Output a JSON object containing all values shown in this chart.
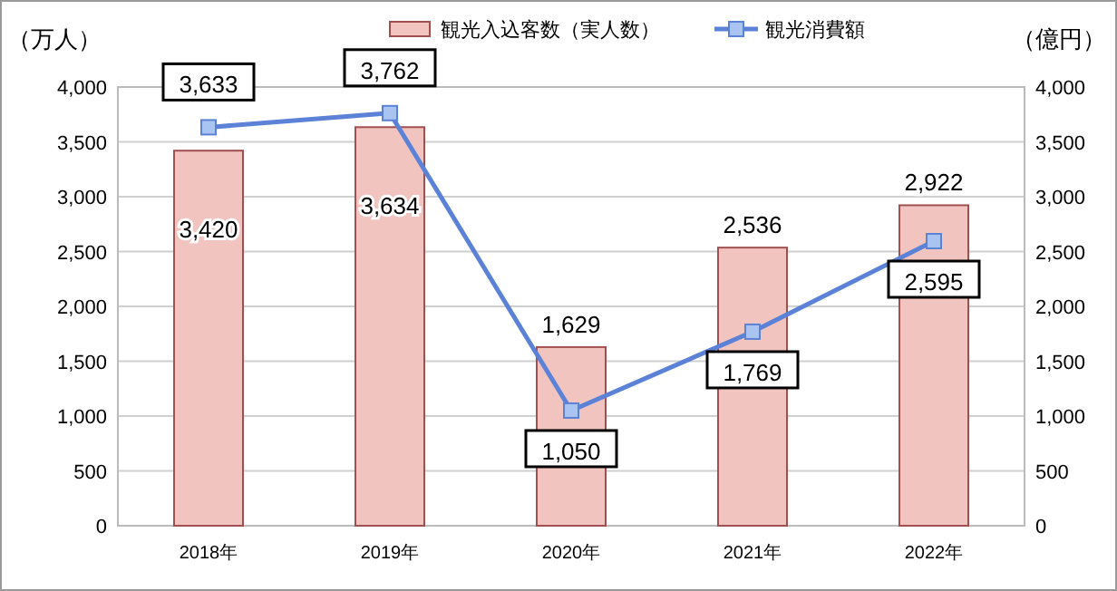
{
  "chart_data": {
    "type": "bar",
    "ylabel": "（万人）",
    "y2label": "（億円）",
    "categories": [
      "2018年",
      "2019年",
      "2020年",
      "2021年",
      "2022年"
    ],
    "series": [
      {
        "name": "観光入込客数（実人数）",
        "color": "#f2c4c0",
        "values": [
          3420,
          3634,
          1629,
          2536,
          2922
        ],
        "value_labels": [
          "3,420",
          "3,634",
          "1,629",
          "2,536",
          "2,922"
        ]
      },
      {
        "name": "観光消費額",
        "type": "line",
        "axis": "y2",
        "color": "#5b82d6",
        "marker": "square",
        "values": [
          3633,
          3762,
          1050,
          1769,
          2595
        ],
        "value_labels": [
          "3,633",
          "3,762",
          "1,050",
          "1,769",
          "2,595"
        ]
      }
    ],
    "ylim": [
      0,
      4000
    ],
    "yticks": [
      0,
      {
        "value": 500,
        "label": "500"
      },
      {
        "value": 1000,
        "label": "1,000"
      },
      {
        "value": 1500,
        "label": "1,500"
      },
      {
        "value": 2000,
        "label": "2,000"
      },
      {
        "value": 2500,
        "label": "2,500"
      },
      {
        "value": 3000,
        "label": "3,000"
      },
      {
        "value": 3500,
        "label": "3,500"
      },
      {
        "value": 4000,
        "label": "4,000"
      }
    ],
    "y2lim": [
      0,
      4000
    ],
    "y2ticks": [
      0,
      {
        "value": 500,
        "label": "500"
      },
      {
        "value": 1000,
        "label": "1,000"
      },
      {
        "value": 1500,
        "label": "1,500"
      },
      {
        "value": 2000,
        "label": "2,000"
      },
      {
        "value": 2500,
        "label": "2,500"
      },
      {
        "value": 3000,
        "label": "3,000"
      },
      {
        "value": 3500,
        "label": "3,500"
      },
      {
        "value": 4000,
        "label": "4,000"
      }
    ],
    "grid": "y",
    "legend": "top"
  }
}
